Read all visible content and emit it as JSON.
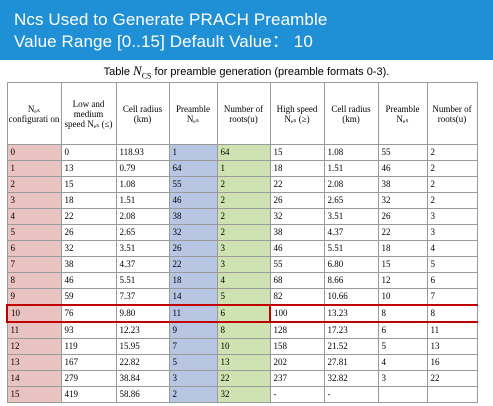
{
  "header": {
    "line1": "Ncs Used to Generate PRACH Preamble",
    "line2": "Value Range [0..15]  Default Value： 10"
  },
  "caption": {
    "prefix": "Table ",
    "symbol": "N",
    "symbol_sub": "CS",
    "suffix": "  for preamble generation (preamble formats 0-3)."
  },
  "table": {
    "headers": [
      "Nₑₛ configurati on",
      "Low and medium speed Nₑₛ (≤)",
      "Cell radius (km)",
      "Preamble Nₑₛ",
      "Number of roots(u)",
      "High speed Nₑₛ (≥)",
      "Cell radius (km)",
      "Preamble Nₑₛ",
      "Number of roots(u)"
    ],
    "rows": [
      [
        "0",
        "0",
        "118.93",
        "1",
        "64",
        "15",
        "1.08",
        "55",
        "2"
      ],
      [
        "1",
        "13",
        "0.79",
        "64",
        "1",
        "18",
        "1.51",
        "46",
        "2"
      ],
      [
        "2",
        "15",
        "1.08",
        "55",
        "2",
        "22",
        "2.08",
        "38",
        "2"
      ],
      [
        "3",
        "18",
        "1.51",
        "46",
        "2",
        "26",
        "2.65",
        "32",
        "2"
      ],
      [
        "4",
        "22",
        "2.08",
        "38",
        "2",
        "32",
        "3.51",
        "26",
        "3"
      ],
      [
        "5",
        "26",
        "2.65",
        "32",
        "2",
        "38",
        "4.37",
        "22",
        "3"
      ],
      [
        "6",
        "32",
        "3.51",
        "26",
        "3",
        "46",
        "5.51",
        "18",
        "4"
      ],
      [
        "7",
        "38",
        "4.37",
        "22",
        "3",
        "55",
        "6.80",
        "15",
        "5"
      ],
      [
        "8",
        "46",
        "5.51",
        "18",
        "4",
        "68",
        "8.66",
        "12",
        "6"
      ],
      [
        "9",
        "59",
        "7.37",
        "14",
        "5",
        "82",
        "10.66",
        "10",
        "7"
      ],
      [
        "10",
        "76",
        "9.80",
        "11",
        "6",
        "100",
        "13.23",
        "8",
        "8"
      ],
      [
        "11",
        "93",
        "12.23",
        "9",
        "8",
        "128",
        "17.23",
        "6",
        "11"
      ],
      [
        "12",
        "119",
        "15.95",
        "7",
        "10",
        "158",
        "21.52",
        "5",
        "13"
      ],
      [
        "13",
        "167",
        "22.82",
        "5",
        "13",
        "202",
        "27.81",
        "4",
        "16"
      ],
      [
        "14",
        "279",
        "38.84",
        "3",
        "22",
        "237",
        "32.82",
        "3",
        "22"
      ],
      [
        "15",
        "419",
        "58.86",
        "2",
        "32",
        "-",
        "-",
        "",
        ""
      ]
    ],
    "highlighted_row": "10",
    "colors": {
      "header_band": "#1f8fd6",
      "config_column": "#e9c3c2",
      "preamble_column": "#b8c6e3",
      "roots_column": "#cfe2b1",
      "highlight_border": "#c00000"
    }
  }
}
